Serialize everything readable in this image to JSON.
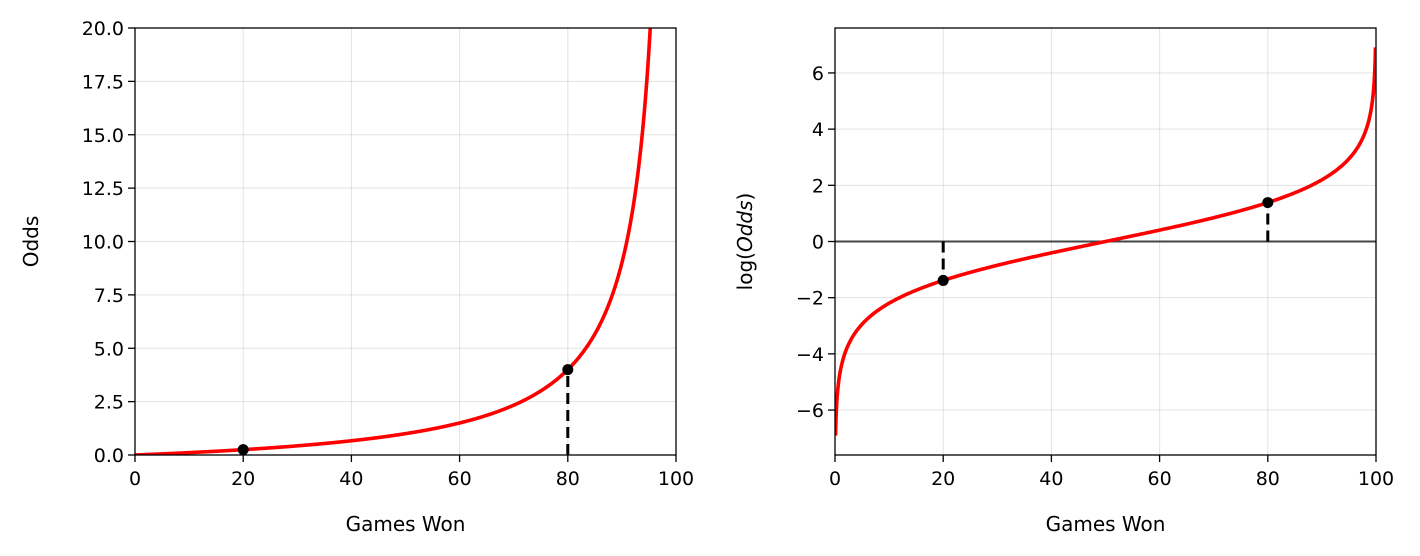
{
  "chart_data": [
    {
      "type": "line",
      "title": "",
      "xlabel": "Games Won",
      "ylabel": "Odds",
      "xlim": [
        0,
        100
      ],
      "ylim": [
        0,
        20
      ],
      "xticks": [
        "0",
        "20",
        "40",
        "60",
        "80",
        "100"
      ],
      "yticks": [
        "0.0",
        "2.5",
        "5.0",
        "7.5",
        "10.0",
        "12.5",
        "15.0",
        "17.5",
        "20.0"
      ],
      "grid": true,
      "series": [
        {
          "function": "p/(100-p)",
          "color": "#ff0000",
          "x": [
            0,
            10,
            20,
            30,
            40,
            50,
            60,
            70,
            80,
            85,
            90,
            92,
            94,
            95
          ],
          "y": [
            0,
            0.111,
            0.25,
            0.429,
            0.667,
            1.0,
            1.5,
            2.333,
            4.0,
            5.667,
            9.0,
            11.5,
            15.667,
            19.0
          ]
        }
      ],
      "points": [
        {
          "x": 20,
          "y": 0.25
        },
        {
          "x": 80,
          "y": 4.0
        }
      ],
      "dropline": {
        "x": 80,
        "from": 0,
        "to": 4.0,
        "style": "dashed"
      }
    },
    {
      "type": "line",
      "title": "",
      "xlabel": "Games Won",
      "ylabel": "log(Odds)",
      "ylabel_plain": "log(",
      "ylabel_italic": "Odds",
      "ylabel_close": ")",
      "xlim": [
        0,
        100
      ],
      "ylim": [
        -7.6,
        7.6
      ],
      "xticks": [
        "0",
        "20",
        "40",
        "60",
        "80",
        "100"
      ],
      "yticks": [
        "−6",
        "−4",
        "−2",
        "0",
        "2",
        "4",
        "6"
      ],
      "grid": true,
      "hline": {
        "y": 0,
        "color": "#444444"
      },
      "series": [
        {
          "function": "ln(p/(100-p))",
          "color": "#ff0000",
          "x": [
            0.1,
            1,
            5,
            10,
            20,
            30,
            40,
            50,
            60,
            70,
            80,
            90,
            95,
            99,
            99.9
          ],
          "y": [
            -6.91,
            -4.6,
            -2.94,
            -2.2,
            -1.39,
            -0.85,
            -0.41,
            0,
            0.41,
            0.85,
            1.39,
            2.2,
            2.94,
            4.6,
            6.91
          ]
        }
      ],
      "points": [
        {
          "x": 20,
          "y": -1.386
        },
        {
          "x": 80,
          "y": 1.386
        }
      ],
      "droplines": [
        {
          "x": 20,
          "from": 0,
          "to": -1.386,
          "style": "dashed"
        },
        {
          "x": 80,
          "from": 0,
          "to": 1.386,
          "style": "dashed"
        }
      ]
    }
  ],
  "colors": {
    "curve": "#ff0000",
    "points": "#000000",
    "hline": "#444444"
  }
}
